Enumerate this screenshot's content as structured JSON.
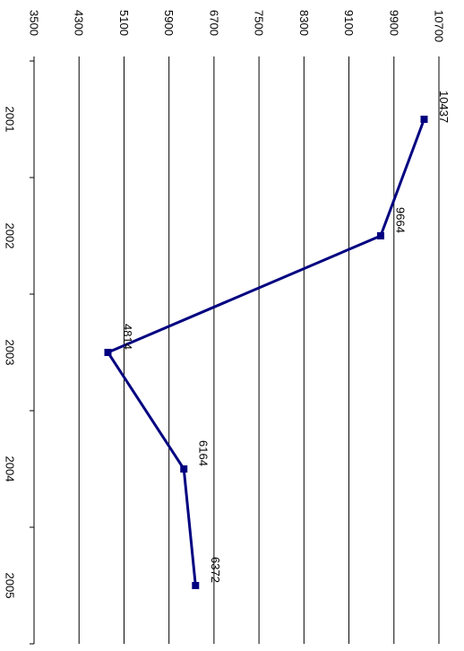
{
  "chart_data": {
    "type": "line",
    "title": "",
    "xlabel": "",
    "ylabel": "",
    "categories": [
      "2001",
      "2002",
      "2003",
      "2004",
      "2005"
    ],
    "series": [
      {
        "values": [
          10437,
          9664,
          4814,
          6164,
          6372
        ]
      }
    ],
    "ylim": [
      3500,
      10700
    ],
    "y_ticks": [
      3500,
      4300,
      5100,
      5900,
      6700,
      7500,
      8300,
      9100,
      9900,
      10700
    ],
    "grid": true,
    "legend": "none",
    "orientation": "rotated 90 degrees clockwise",
    "colors": {
      "line": "#000080",
      "marker": "#000080",
      "grid": "#000000",
      "text": "#000000"
    }
  }
}
